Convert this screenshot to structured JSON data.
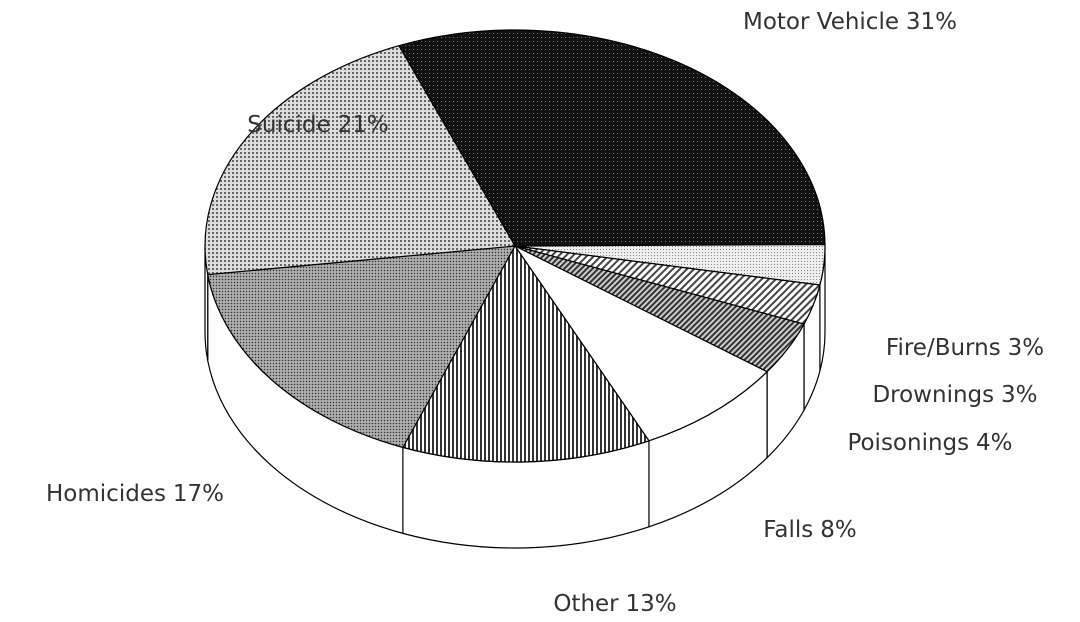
{
  "chart_data": {
    "type": "pie",
    "categories": [
      "Motor Vehicle",
      "Fire/Burns",
      "Drownings",
      "Poisonings",
      "Falls",
      "Other",
      "Homicides",
      "Suicide"
    ],
    "values": [
      31,
      3,
      3,
      4,
      8,
      13,
      17,
      21
    ],
    "value_labels": [
      "31%",
      "3%",
      "3%",
      "4%",
      "8%",
      "13%",
      "17%",
      "21%"
    ]
  }
}
